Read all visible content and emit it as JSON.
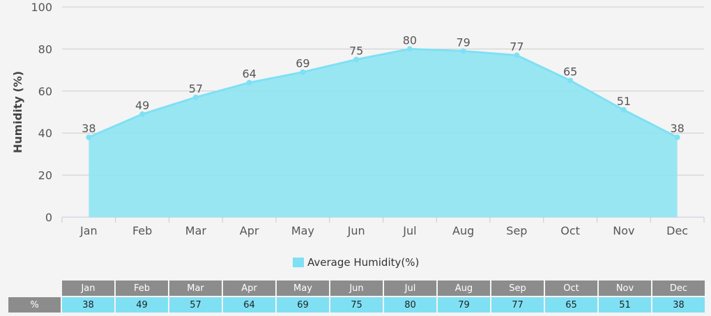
{
  "chart_data": {
    "type": "area",
    "categories": [
      "Jan",
      "Feb",
      "Mar",
      "Apr",
      "May",
      "Jun",
      "Jul",
      "Aug",
      "Sep",
      "Oct",
      "Nov",
      "Dec"
    ],
    "series": [
      {
        "name": "Average Humidity(%)",
        "values": [
          38,
          49,
          57,
          64,
          69,
          75,
          80,
          79,
          77,
          65,
          51,
          38
        ],
        "color": "#7fe0f4"
      }
    ],
    "xlabel": "",
    "ylabel": "Humidity (%)",
    "ylim": [
      0,
      100
    ],
    "yticks": [
      0,
      20,
      40,
      60,
      80,
      100
    ],
    "grid": true,
    "legend_position": "bottom",
    "data_labels": true
  },
  "table": {
    "row_header": "%",
    "header_color": "#8c8c8c",
    "cell_color": "#7fe0f4"
  },
  "colors": {
    "background": "#f4f4f4",
    "line": "#7fe0f4",
    "fill": "#8fe4f3",
    "grid": "#cccccc"
  }
}
